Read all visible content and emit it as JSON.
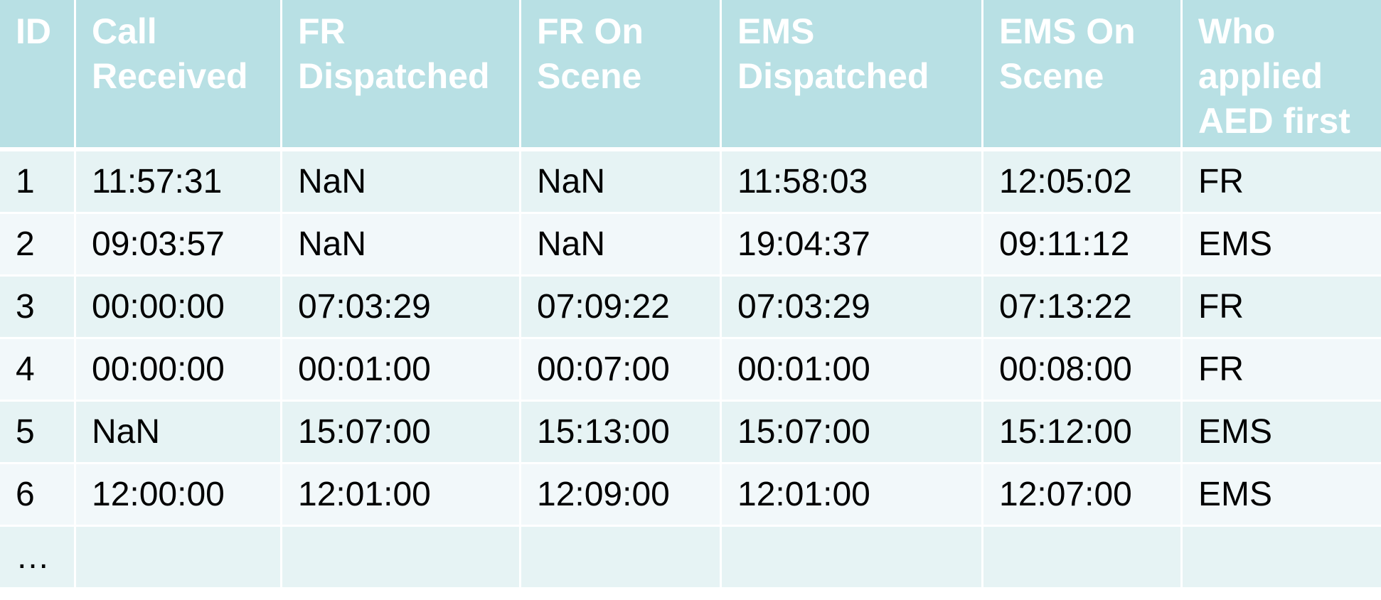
{
  "table": {
    "headers": [
      "ID",
      "Call Received",
      "FR Dispatched",
      "FR On Scene",
      "EMS Dispatched",
      "EMS On Scene",
      "Who applied AED first"
    ],
    "rows": [
      [
        "1",
        "11:57:31",
        "NaN",
        "NaN",
        "11:58:03",
        "12:05:02",
        "FR"
      ],
      [
        "2",
        "09:03:57",
        "NaN",
        "NaN",
        "19:04:37",
        "09:11:12",
        "EMS"
      ],
      [
        "3",
        "00:00:00",
        "07:03:29",
        "07:09:22",
        "07:03:29",
        "07:13:22",
        "FR"
      ],
      [
        "4",
        "00:00:00",
        "00:01:00",
        "00:07:00",
        "00:01:00",
        "00:08:00",
        "FR"
      ],
      [
        "5",
        "NaN",
        "15:07:00",
        "15:13:00",
        "15:07:00",
        "15:12:00",
        "EMS"
      ],
      [
        "6",
        "12:00:00",
        "12:01:00",
        "12:09:00",
        "12:01:00",
        "12:07:00",
        "EMS"
      ],
      [
        "…",
        "",
        "",
        "",
        "",
        "",
        ""
      ]
    ]
  },
  "colors": {
    "header_bg": "#b8e0e4",
    "header_text": "#ffffff",
    "row_odd_bg": "#e6f3f4",
    "row_even_bg": "#f2f8fa",
    "cell_text": "#000000"
  }
}
